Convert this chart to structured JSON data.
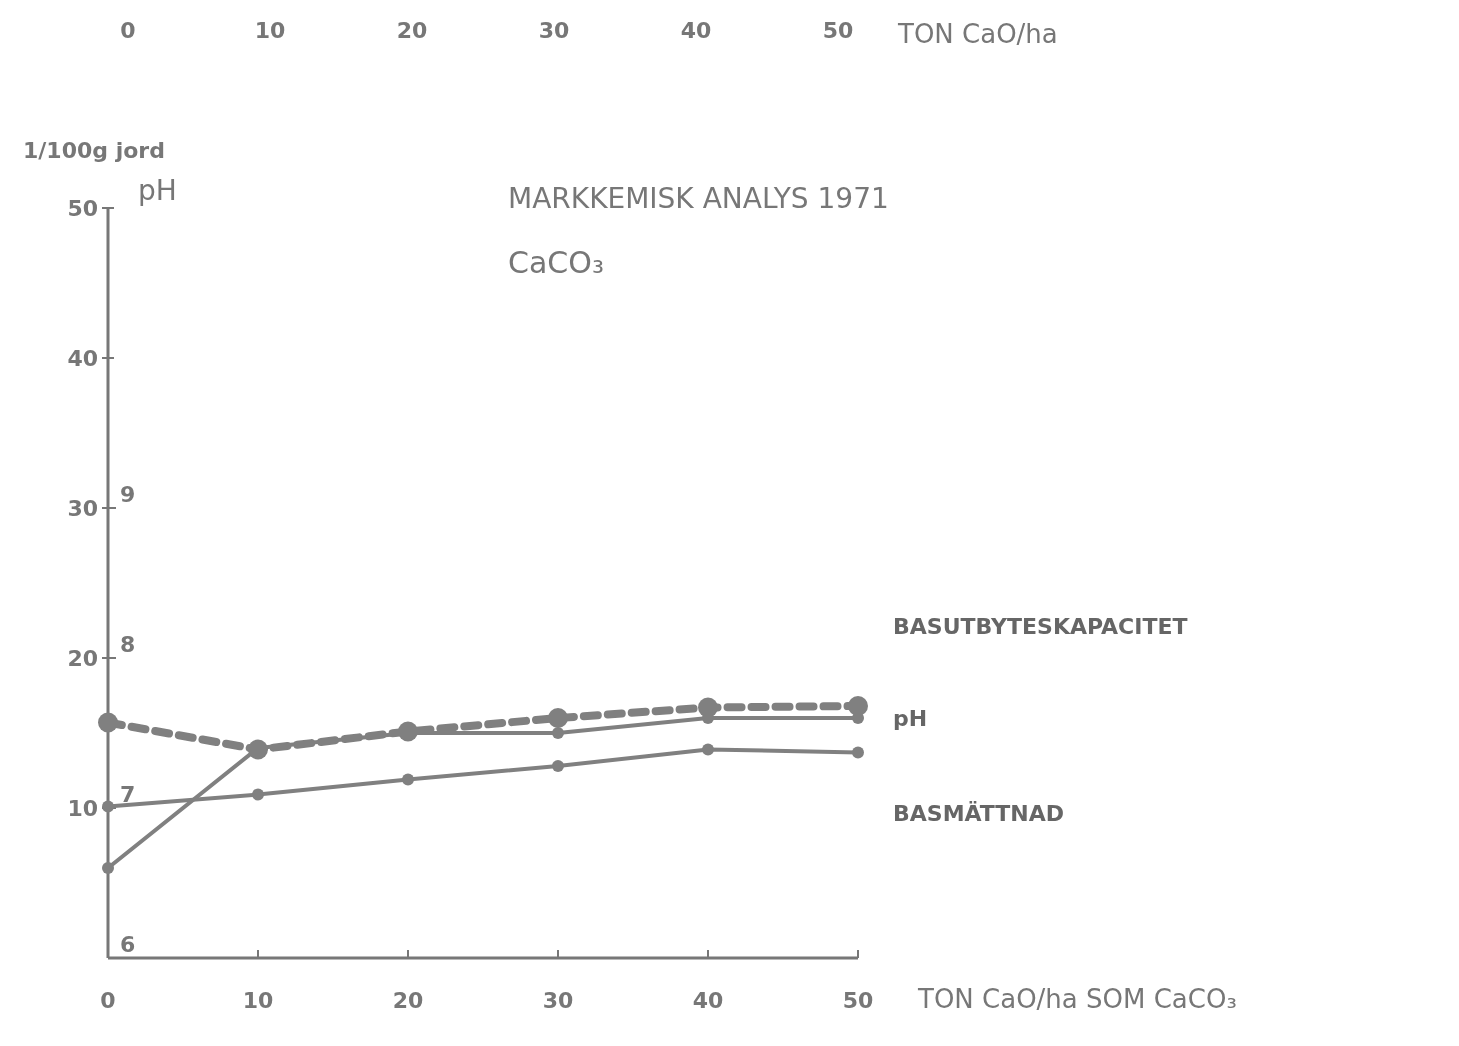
{
  "chart_data": {
    "type": "line",
    "title": "MARKKEMISK ANALYS 1971",
    "subtitle": "CaCO₃",
    "xlabel": "TON CaO/ha SOM CaCO₃",
    "x2label": "TON CaO/ha",
    "ylabel": "1/100g jord",
    "y2label": "pH",
    "xlim": [
      0,
      50
    ],
    "xticks": [
      0,
      10,
      20,
      30,
      40,
      50
    ],
    "x2lim": [
      0,
      50
    ],
    "x2ticks": [
      0,
      10,
      20,
      30,
      40,
      50
    ],
    "ylim": [
      0,
      50
    ],
    "yticks": [
      10,
      20,
      30,
      40,
      50
    ],
    "y2lim": [
      6,
      11
    ],
    "y2ticks": [
      6,
      7,
      8,
      9
    ],
    "marker": "circle",
    "series": [
      {
        "name": "BASUTBYTESKAPACITET",
        "color": "#808080",
        "line_style": "dashed",
        "x": [
          0,
          10,
          20,
          30,
          40,
          50
        ],
        "values": [
          15.7,
          13.9,
          15.1,
          16.0,
          16.7,
          16.8
        ]
      },
      {
        "name": "pH",
        "color": "#808080",
        "line_style": "solid",
        "axis": "y2",
        "x": [
          0,
          10,
          20,
          30,
          40,
          50
        ],
        "values": [
          6.6,
          7.4,
          7.5,
          7.5,
          7.6,
          7.6
        ]
      },
      {
        "name": "BASMÄTTNAD",
        "color": "#808080",
        "line_style": "solid",
        "x": [
          0,
          10,
          20,
          30,
          40,
          50
        ],
        "values": [
          10.1,
          10.9,
          11.9,
          12.8,
          13.9,
          13.7
        ]
      }
    ]
  }
}
